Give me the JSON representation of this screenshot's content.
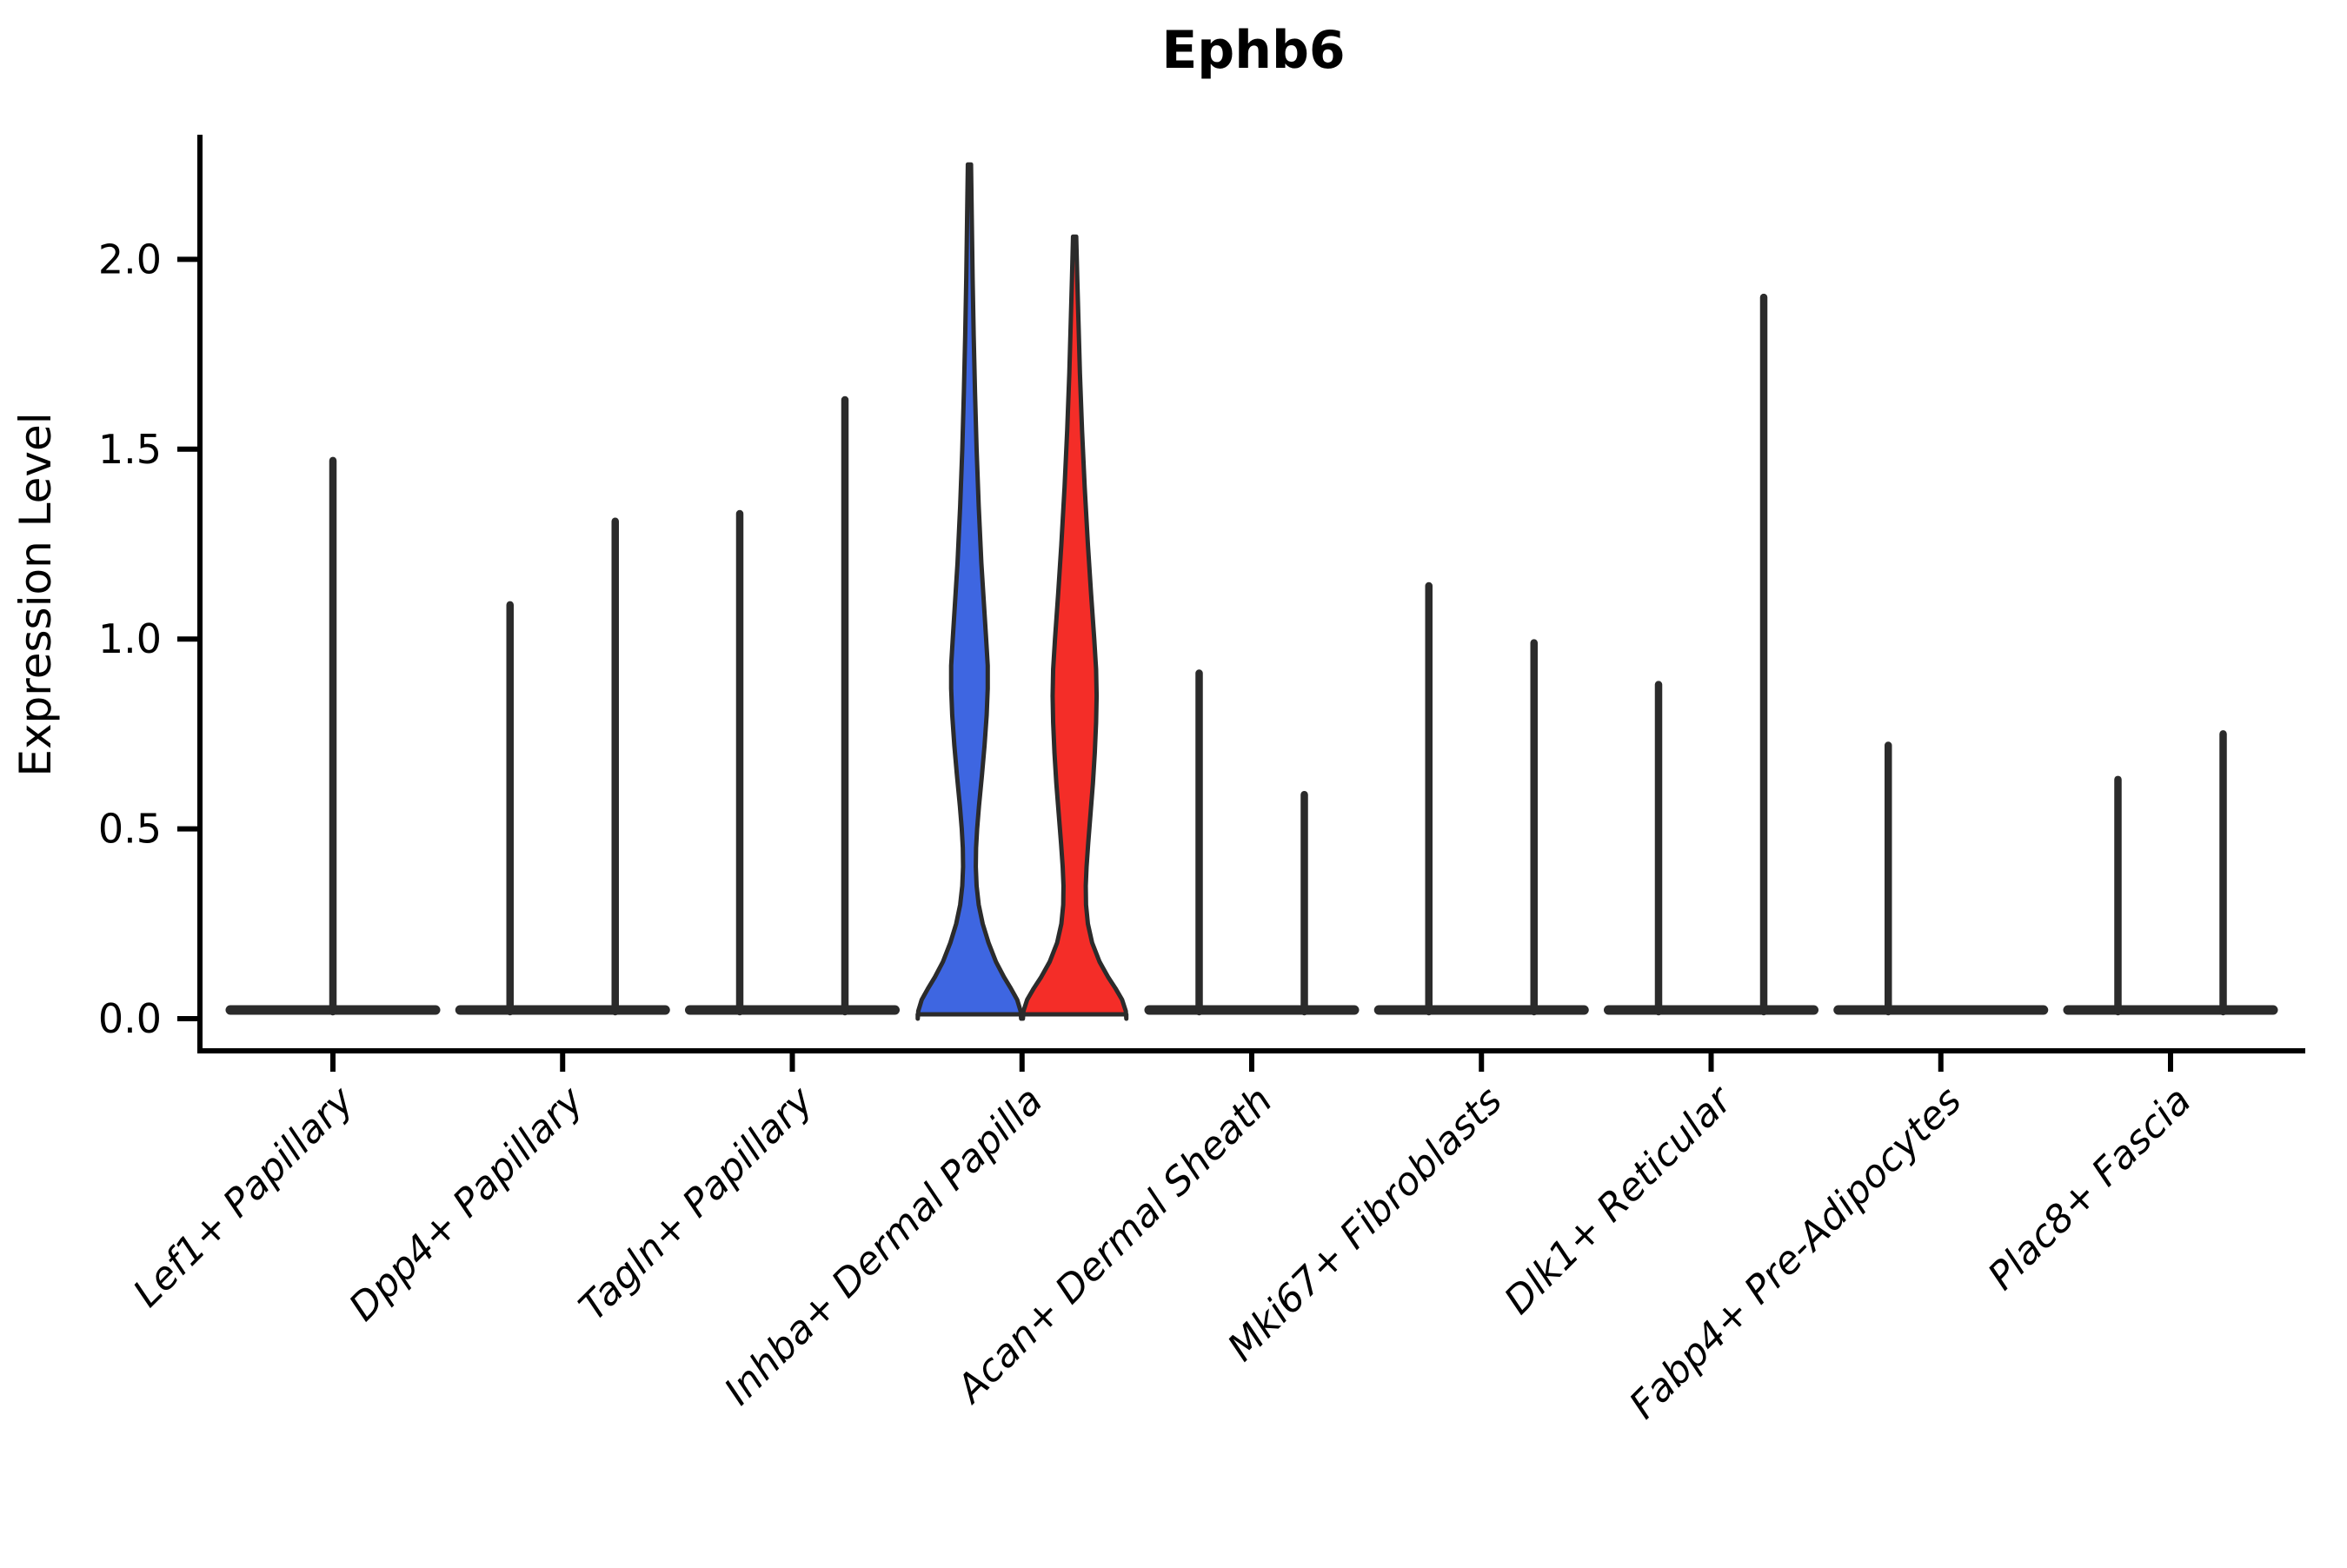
{
  "chart_data": {
    "type": "violin",
    "title": "Ephb6",
    "ylabel": "Expression Level",
    "xlabel": "",
    "ylim": [
      0,
      2.35
    ],
    "yticks": [
      "0.0",
      "0.5",
      "1.0",
      "1.5",
      "2.0"
    ],
    "ytick_values": [
      0,
      0.5,
      1.0,
      1.5,
      2.0
    ],
    "grid": false,
    "legend": "none",
    "colors": {
      "group1_blue": "#3E66E1",
      "group2_red": "#F42D28",
      "violin_line": "#2B2B2B",
      "axis": "#000000"
    },
    "note": "Split/dodged violin plot of Ephb6 expression. Most populations show only a flat baseline density at 0 with a thin spike to the max expressing cell; Inhba+ Dermal Papilla shows full-bodied blue (group 1, left) and red (group 2, right) violins.",
    "categories": [
      {
        "label": "Lef1+ Papillary",
        "spikes": [
          {
            "pos": "center",
            "max": 1.47
          }
        ]
      },
      {
        "label": "Dpp4+ Papillary",
        "spikes": [
          {
            "pos": "left",
            "max": 1.09
          },
          {
            "pos": "right",
            "max": 1.31
          }
        ]
      },
      {
        "label": "Tagln+ Papillary",
        "spikes": [
          {
            "pos": "left",
            "max": 1.33
          },
          {
            "pos": "right",
            "max": 1.63
          }
        ]
      },
      {
        "label": "Inhba+ Dermal Papilla",
        "spikes": [],
        "bodies": [
          {
            "pos": "left",
            "color": "group1_blue",
            "profile": "blue_violin"
          },
          {
            "pos": "right",
            "color": "group2_red",
            "profile": "red_violin"
          }
        ]
      },
      {
        "label": "Acan+ Dermal Sheath",
        "spikes": [
          {
            "pos": "left",
            "max": 0.91
          },
          {
            "pos": "right",
            "max": 0.59
          }
        ]
      },
      {
        "label": "Mki67+ Fibroblasts",
        "spikes": [
          {
            "pos": "left",
            "max": 1.14
          },
          {
            "pos": "right",
            "max": 0.99
          }
        ]
      },
      {
        "label": "Dlk1+ Reticular",
        "spikes": [
          {
            "pos": "left",
            "max": 0.88
          },
          {
            "pos": "right",
            "max": 1.9
          }
        ]
      },
      {
        "label": "Fabp4+ Pre-Adipocytes",
        "spikes": [
          {
            "pos": "left",
            "max": 0.72
          }
        ]
      },
      {
        "label": "Plac8+ Fascia",
        "spikes": [
          {
            "pos": "left",
            "max": 0.63
          },
          {
            "pos": "right",
            "max": 0.75
          }
        ]
      }
    ],
    "profiles": {
      "blue_violin": {
        "max": 2.25,
        "points": [
          [
            2.25,
            0.03
          ],
          [
            2.1,
            0.045
          ],
          [
            1.95,
            0.06
          ],
          [
            1.8,
            0.08
          ],
          [
            1.65,
            0.105
          ],
          [
            1.5,
            0.135
          ],
          [
            1.35,
            0.175
          ],
          [
            1.2,
            0.225
          ],
          [
            1.1,
            0.27
          ],
          [
            1.0,
            0.315
          ],
          [
            0.93,
            0.345
          ],
          [
            0.87,
            0.345
          ],
          [
            0.8,
            0.325
          ],
          [
            0.72,
            0.285
          ],
          [
            0.64,
            0.235
          ],
          [
            0.56,
            0.18
          ],
          [
            0.5,
            0.145
          ],
          [
            0.45,
            0.125
          ],
          [
            0.4,
            0.12
          ],
          [
            0.35,
            0.135
          ],
          [
            0.3,
            0.175
          ],
          [
            0.25,
            0.25
          ],
          [
            0.2,
            0.36
          ],
          [
            0.15,
            0.5
          ],
          [
            0.11,
            0.65
          ],
          [
            0.08,
            0.78
          ],
          [
            0.05,
            0.9
          ],
          [
            0.02,
            0.965
          ],
          [
            0.0,
            0.975
          ]
        ]
      },
      "red_violin": {
        "max": 2.06,
        "points": [
          [
            2.06,
            0.03
          ],
          [
            1.95,
            0.05
          ],
          [
            1.85,
            0.07
          ],
          [
            1.7,
            0.1
          ],
          [
            1.55,
            0.14
          ],
          [
            1.4,
            0.19
          ],
          [
            1.25,
            0.25
          ],
          [
            1.12,
            0.31
          ],
          [
            1.0,
            0.37
          ],
          [
            0.92,
            0.405
          ],
          [
            0.85,
            0.415
          ],
          [
            0.78,
            0.405
          ],
          [
            0.7,
            0.38
          ],
          [
            0.62,
            0.345
          ],
          [
            0.54,
            0.3
          ],
          [
            0.46,
            0.255
          ],
          [
            0.4,
            0.225
          ],
          [
            0.35,
            0.21
          ],
          [
            0.3,
            0.215
          ],
          [
            0.25,
            0.25
          ],
          [
            0.2,
            0.33
          ],
          [
            0.15,
            0.47
          ],
          [
            0.11,
            0.63
          ],
          [
            0.08,
            0.77
          ],
          [
            0.05,
            0.895
          ],
          [
            0.02,
            0.965
          ],
          [
            0.0,
            0.975
          ]
        ]
      }
    }
  }
}
